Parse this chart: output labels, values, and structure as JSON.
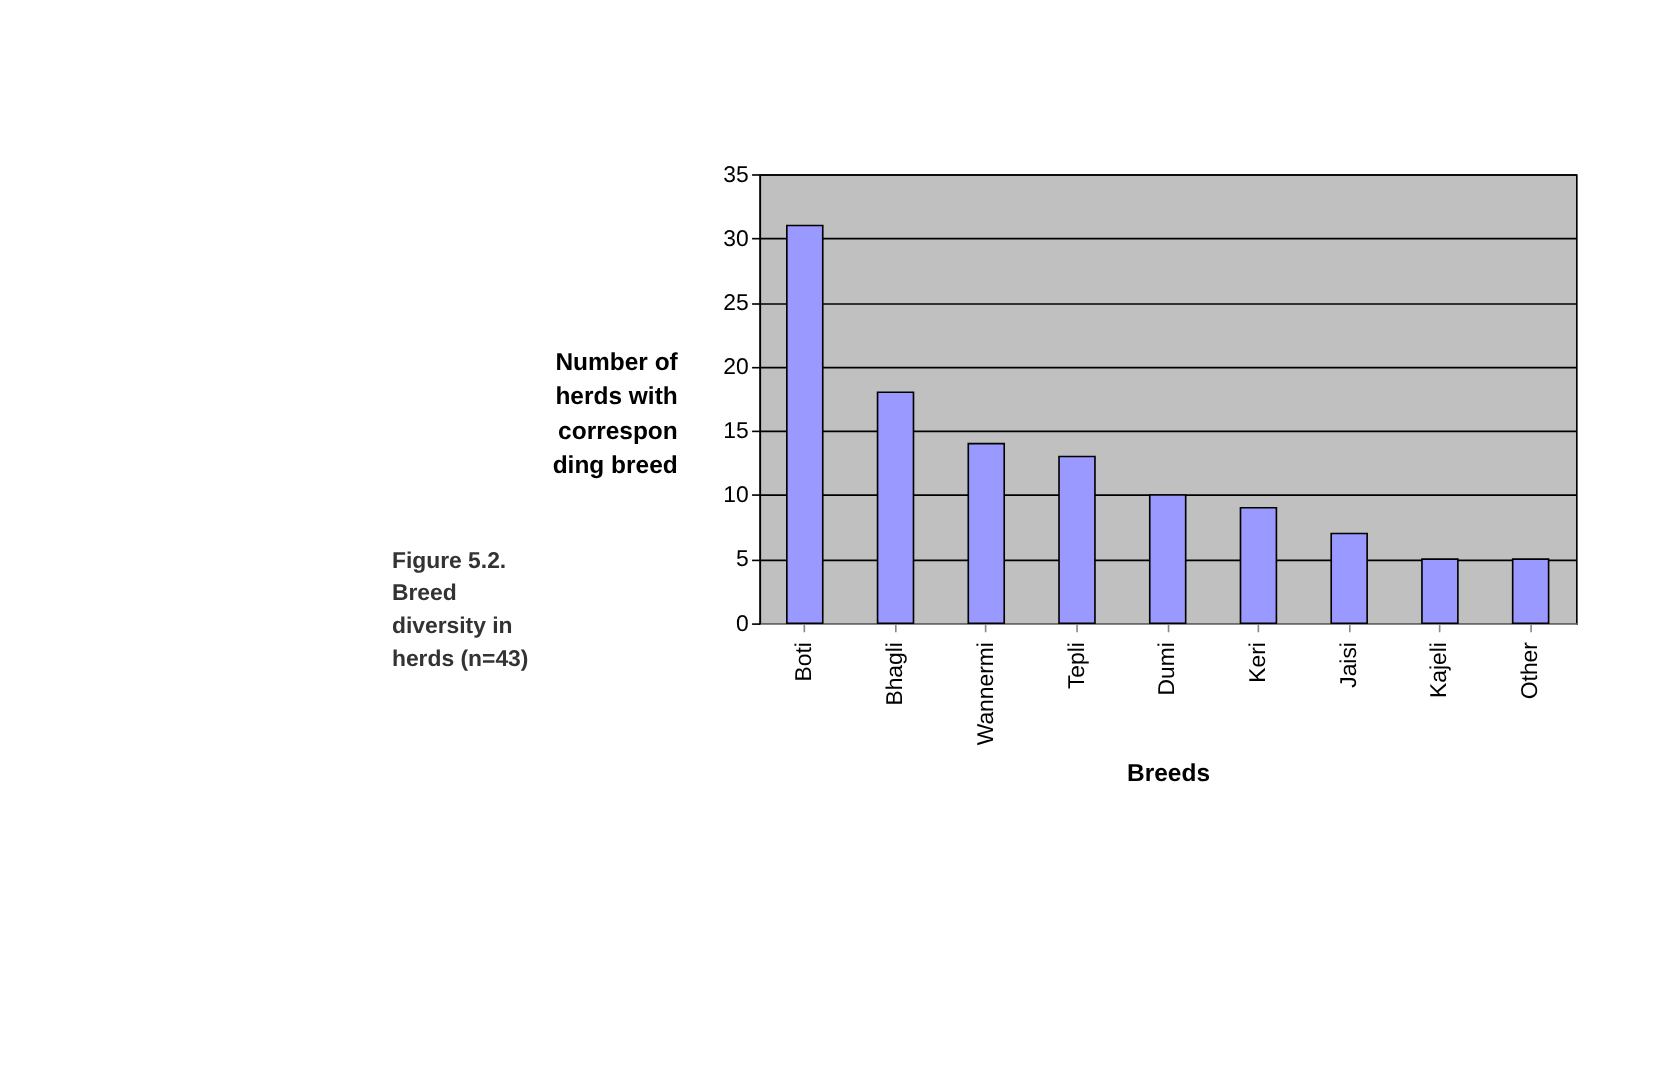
{
  "chart_data": {
    "type": "bar",
    "xlabel": "Breeds",
    "ylabel": "Number of\nherds with\ncorrespon\nding breed",
    "annotations": [
      "Figure 5.2.\nBreed\ndiversity in\nherds (n=43)"
    ],
    "categories": [
      "Boti",
      "Bhagli",
      "Wannermi",
      "Tepli",
      "Dumi",
      "Keri",
      "Jaisi",
      "Kajeli",
      "Other"
    ],
    "values": [
      31,
      18,
      14,
      13,
      10,
      9,
      7,
      5,
      5
    ],
    "color": "#9999ff",
    "ylim": [
      0,
      35
    ],
    "yticks": [
      0,
      5,
      10,
      15,
      20,
      25,
      30,
      35
    ],
    "grid": "y"
  }
}
